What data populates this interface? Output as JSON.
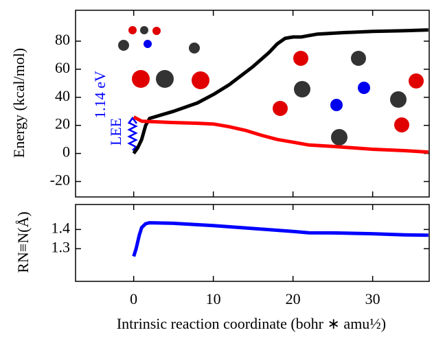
{
  "chart_data": [
    {
      "type": "line",
      "y_label": "Energy (kcal/mol)",
      "annotations": [
        "1.14 eV",
        "LEE"
      ],
      "xlim": [
        -7.3,
        37.1
      ],
      "xticks": [
        0,
        10,
        20,
        30
      ],
      "ylim": [
        -31,
        102
      ],
      "yticks": [
        -20,
        0,
        20,
        40,
        60,
        80
      ],
      "series": [
        {
          "color": "#000000",
          "x": [
            0,
            0.5,
            1,
            1.5,
            2,
            5,
            8,
            10,
            12,
            15,
            17,
            18,
            19,
            20,
            21,
            22,
            23,
            26,
            30,
            34,
            37
          ],
          "values": [
            0,
            4,
            10,
            20,
            25,
            30,
            36,
            42,
            49,
            62,
            72,
            78,
            82,
            83,
            83,
            84,
            85,
            86,
            87,
            87.5,
            88
          ]
        },
        {
          "color": "#ff0000",
          "x": [
            0,
            1,
            3,
            5,
            8,
            10,
            12,
            14,
            16,
            18,
            20,
            22,
            25,
            30,
            34,
            37
          ],
          "values": [
            26,
            23,
            22.5,
            22,
            21.5,
            21,
            19,
            16.5,
            13,
            10,
            8,
            6,
            5,
            3,
            2,
            1
          ]
        }
      ]
    },
    {
      "type": "line",
      "y_label": "RN≡N(Å)",
      "x_label": "Intrinsic reaction coordinate (bohr ∗ amu½)",
      "xlim": [
        -7.3,
        37.1
      ],
      "xticks": [
        0,
        10,
        20,
        30
      ],
      "ylim": [
        1.13,
        1.53
      ],
      "yticks": [
        1.3,
        1.4
      ],
      "series": [
        {
          "color": "#0000ff",
          "x": [
            0,
            0.3,
            0.7,
            1,
            1.5,
            2,
            5,
            10,
            15,
            20,
            22,
            25,
            30,
            34,
            37
          ],
          "values": [
            1.26,
            1.3,
            1.37,
            1.41,
            1.43,
            1.435,
            1.432,
            1.42,
            1.405,
            1.39,
            1.383,
            1.382,
            1.378,
            1.372,
            1.37
          ]
        }
      ]
    }
  ]
}
